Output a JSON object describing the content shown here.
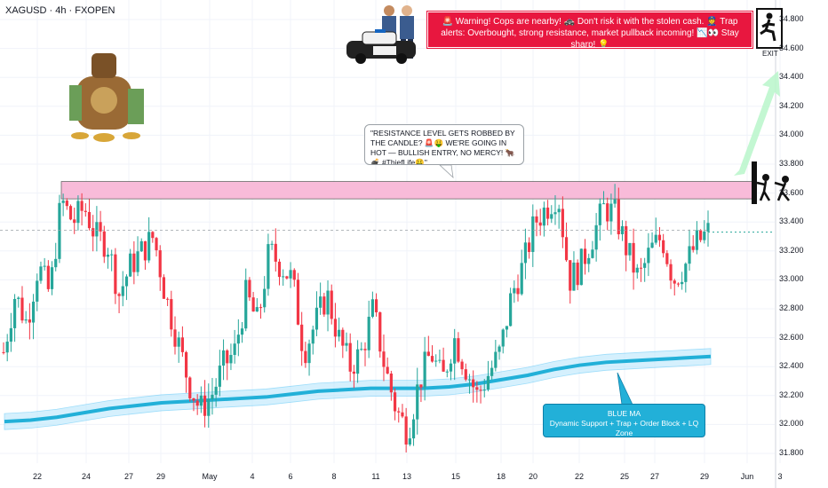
{
  "header": {
    "symbol_line": "XAGUSD · 4h · FXOPEN"
  },
  "note": {
    "text": "\"RESISTANCE LEVEL GETS ROBBED BY THE CANDLE? 🚨🤑 WE'RE GOING IN HOT — BULLISH ENTRY, NO MERCY! 🐂💣 #ThiefLife🤑\""
  },
  "warning": {
    "text": "🚨 Warning! Cops are nearby! 🚓 Don't risk it with the stolen cash. 👮 Trap alerts: Overbought, strong resistance, market pullback incoming! 📉👀 Stay sharp! 💡"
  },
  "ma_box": {
    "title": "BLUE MA",
    "subtitle": "Dynamic Support + Trap + Order Block + LQ Zone"
  },
  "exit": {
    "label": "EXIT"
  },
  "icons": [
    "money-bag-icon",
    "police-officers-icon",
    "police-car-icon",
    "exit-runner-icon",
    "thieves-icon"
  ],
  "colors": {
    "up": "#26a69a",
    "down": "#f23645",
    "zone": "#f8bbd9",
    "ma": "#22b0d8",
    "warning": "#e8173f",
    "arrow": "#b9f6ca"
  },
  "chart_data": {
    "type": "candlestick",
    "title": "",
    "y_ticks": [
      "34.800",
      "34.600",
      "34.400",
      "34.200",
      "34.000",
      "33.800",
      "33.600",
      "33.400",
      "33.200",
      "33.000",
      "32.800",
      "32.600",
      "32.400",
      "32.200",
      "32.000",
      "31.800"
    ],
    "x_ticks": [
      "22",
      "24",
      "27",
      "29",
      "May",
      "4",
      "6",
      "8",
      "11",
      "13",
      "15",
      "18",
      "20",
      "22",
      "25",
      "27",
      "29",
      "Jun",
      "3"
    ],
    "ylim": [
      31.72,
      34.88
    ],
    "resistance_zone": [
      33.56,
      33.68
    ],
    "current_price": 33.33,
    "blue_ma": [
      32.02,
      32.03,
      32.05,
      32.08,
      32.11,
      32.13,
      32.15,
      32.16,
      32.17,
      32.18,
      32.19,
      32.21,
      32.23,
      32.24,
      32.25,
      32.25,
      32.25,
      32.26,
      32.28,
      32.31,
      32.34,
      32.38,
      32.41,
      32.43,
      32.44,
      32.45,
      32.46,
      32.47
    ],
    "price_path": [
      32.5,
      32.9,
      32.7,
      33.1,
      32.9,
      33.55,
      33.4,
      33.5,
      33.3,
      33.25,
      32.9,
      33.1,
      33.2,
      33.3,
      32.9,
      32.6,
      32.3,
      32.1,
      32.2,
      32.4,
      32.5,
      32.9,
      32.7,
      33.2,
      33.1,
      33.0,
      32.5,
      32.7,
      32.9,
      32.6,
      32.4,
      32.5,
      32.8,
      32.4,
      32.1,
      31.95,
      32.3,
      32.5,
      32.3,
      32.6,
      32.4,
      32.2,
      32.35,
      32.5,
      32.9,
      33.1,
      33.4,
      33.5,
      33.6,
      33.0,
      33.1,
      33.3,
      33.5,
      33.45,
      33.2,
      33.0,
      33.2,
      33.3,
      33.0,
      33.1,
      33.25,
      33.33
    ]
  }
}
